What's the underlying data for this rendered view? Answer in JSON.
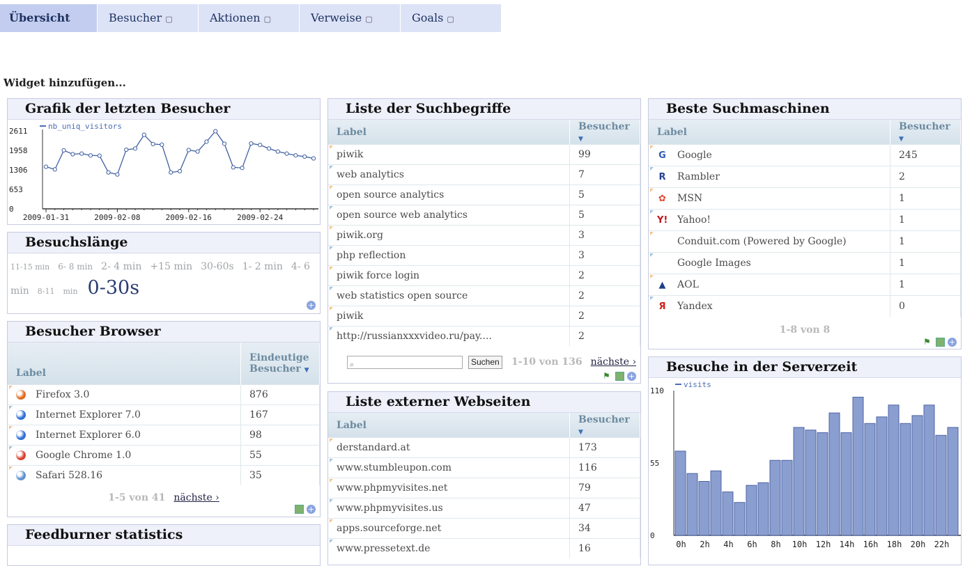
{
  "nav": {
    "tabs": [
      {
        "label": "Übersicht",
        "active": true,
        "arrow": ""
      },
      {
        "label": "Besucher ",
        "arrow": "▢"
      },
      {
        "label": "Aktionen ",
        "arrow": "▢"
      },
      {
        "label": "Verweise ",
        "arrow": "▢"
      },
      {
        "label": "Goals ",
        "arrow": "▢"
      }
    ]
  },
  "add_widget": "Widget hinzufügen...",
  "visitors_graph": {
    "title": "Grafik der letzten Besucher",
    "chart_data": {
      "type": "line",
      "legend": "nb_uniq_visitors",
      "yticks": [
        "2611",
        "1958",
        "1306",
        "653",
        "0"
      ],
      "xticks": [
        "2009-01-31",
        "2009-02-08",
        "2009-02-16",
        "2009-02-24"
      ],
      "ylim": [
        0,
        2611
      ],
      "values": [
        1410,
        1320,
        1960,
        1830,
        1850,
        1790,
        1780,
        1220,
        1150,
        1980,
        2020,
        2480,
        2170,
        2150,
        1220,
        1260,
        1970,
        1920,
        2250,
        2600,
        2180,
        1390,
        1370,
        2190,
        2140,
        2020,
        1920,
        1850,
        1790,
        1750,
        1690
      ]
    }
  },
  "duration": {
    "title": "Besuchslänge",
    "items": [
      "11-15 min",
      "6- 8 min",
      "2- 4 min",
      "+15 min",
      "30-60s",
      "1- 2 min",
      "4- 6 min",
      "8-11"
    ],
    "item_min": "min",
    "big": "0-30s"
  },
  "browsers": {
    "title": "Besucher Browser",
    "col_label": "Label",
    "col_value": "Eindeutige Besucher",
    "rows": [
      {
        "label": "Firefox 3.0",
        "value": "876",
        "icon": "firefox-icon",
        "color": "#e06b1f"
      },
      {
        "label": "Internet Explorer 7.0",
        "value": "167",
        "icon": "ie-icon",
        "color": "#2f6fd6"
      },
      {
        "label": "Internet Explorer 6.0",
        "value": "98",
        "icon": "ie-icon",
        "color": "#2f6fd6"
      },
      {
        "label": "Google Chrome 1.0",
        "value": "55",
        "icon": "chrome-icon",
        "color": "#d9412f"
      },
      {
        "label": "Safari 528.16",
        "value": "35",
        "icon": "safari-icon",
        "color": "#5f8fd0"
      }
    ],
    "pager": "1-5 von 41",
    "next": "nächste ›"
  },
  "feedburner": {
    "title": "Feedburner statistics"
  },
  "keywords": {
    "title": "Liste der Suchbegriffe",
    "col_label": "Label",
    "col_value": "Besucher",
    "rows": [
      {
        "label": "piwik",
        "value": "99"
      },
      {
        "label": "web analytics",
        "value": "7"
      },
      {
        "label": "open source analytics",
        "value": "5"
      },
      {
        "label": "open source web analytics",
        "value": "5"
      },
      {
        "label": "piwik.org",
        "value": "3"
      },
      {
        "label": "php reflection",
        "value": "3"
      },
      {
        "label": "piwik force login",
        "value": "2"
      },
      {
        "label": "web statistics open source",
        "value": "2"
      },
      {
        "label": "piwik",
        "value": "2"
      },
      {
        "label": "http://russianxxxvideo.ru/pay....",
        "value": "2"
      }
    ],
    "search_button": "Suchen",
    "pager": "1-10 von 136",
    "next": "nächste ›"
  },
  "websites": {
    "title": "Liste externer Webseiten",
    "col_label": "Label",
    "col_value": "Besucher",
    "rows": [
      {
        "label": "derstandard.at",
        "value": "173"
      },
      {
        "label": "www.stumbleupon.com",
        "value": "116"
      },
      {
        "label": "www.phpmyvisites.net",
        "value": "79"
      },
      {
        "label": "www.phpmyvisites.us",
        "value": "47"
      },
      {
        "label": "apps.sourceforge.net",
        "value": "34"
      },
      {
        "label": "www.pressetext.de",
        "value": "16"
      }
    ]
  },
  "engines": {
    "title": "Beste Suchmaschinen",
    "col_label": "Label",
    "col_value": "Besucher",
    "rows": [
      {
        "label": "Google",
        "value": "245",
        "glyph": "G",
        "icon": "google-icon",
        "color": "#2d5bb8"
      },
      {
        "label": "Rambler",
        "value": "2",
        "glyph": "R",
        "icon": "rambler-icon",
        "color": "#2a3f8f"
      },
      {
        "label": "MSN",
        "value": "1",
        "glyph": "✿",
        "icon": "msn-icon",
        "color": "#e0452f"
      },
      {
        "label": "Yahoo!",
        "value": "1",
        "glyph": "Y!",
        "icon": "yahoo-icon",
        "color": "#c0141e"
      },
      {
        "label": "Conduit.com (Powered by Google)",
        "value": "1",
        "glyph": "",
        "icon": "conduit-icon",
        "color": "#ffffff"
      },
      {
        "label": "Google Images",
        "value": "1",
        "glyph": "",
        "icon": "google-images-icon",
        "color": "#ffffff"
      },
      {
        "label": "AOL",
        "value": "1",
        "glyph": "▲",
        "icon": "aol-icon",
        "color": "#1c3f8a"
      },
      {
        "label": "Yandex",
        "value": "0",
        "glyph": "Я",
        "icon": "yandex-icon",
        "color": "#d0201a"
      }
    ],
    "pager": "1-8 von 8"
  },
  "servertime": {
    "title": "Besuche in der Serverzeit",
    "chart_data": {
      "type": "bar",
      "legend": "visits",
      "yticks": [
        "110",
        "55",
        "0"
      ],
      "ylim": [
        0,
        110
      ],
      "xticks": [
        "0h",
        "2h",
        "4h",
        "6h",
        "8h",
        "10h",
        "12h",
        "14h",
        "16h",
        "18h",
        "20h",
        "22h"
      ],
      "values": [
        64,
        47,
        41,
        49,
        33,
        25,
        38,
        40,
        57,
        57,
        82,
        80,
        78,
        93,
        78,
        105,
        85,
        90,
        99,
        85,
        91,
        99,
        76,
        82
      ]
    }
  }
}
